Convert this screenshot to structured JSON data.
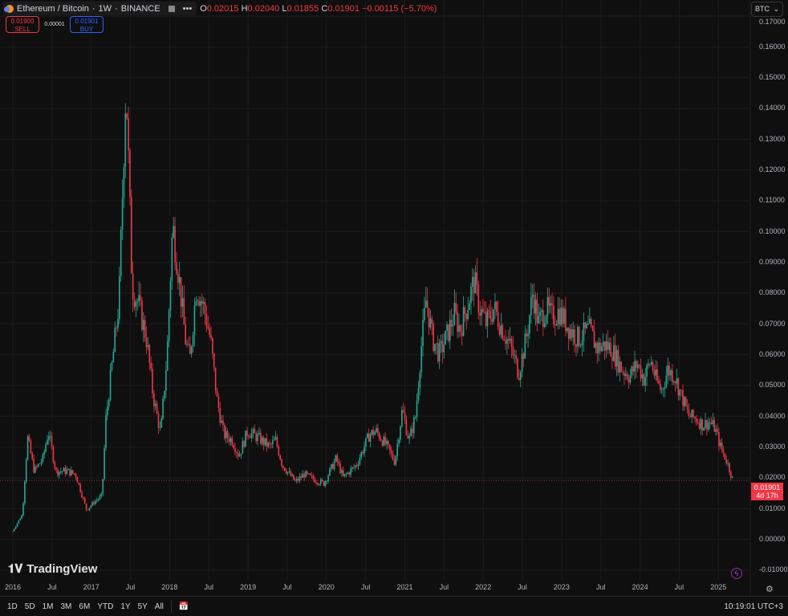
{
  "header": {
    "symbol": "Ethereum / Bitcoin",
    "interval": "1W",
    "exchange": "BINANCE",
    "more": "•••",
    "ohlc": {
      "o_label": "O",
      "o": "0.02015",
      "h_label": "H",
      "h": "0.02040",
      "l_label": "L",
      "l": "0.01855",
      "c_label": "C",
      "c": "0.01901",
      "change": "−0.00115 (−5.70%)"
    }
  },
  "trade": {
    "sell_price": "0.01900",
    "sell_label": "SELL",
    "spread": "0.00001",
    "buy_price": "0.01901",
    "buy_label": "BUY"
  },
  "currency": "BTC",
  "price_axis": [
    "0.17000",
    "0.16000",
    "0.15000",
    "0.14000",
    "0.13000",
    "0.12000",
    "0.11000",
    "0.10000",
    "0.09000",
    "0.08000",
    "0.07000",
    "0.06000",
    "0.05000",
    "0.04000",
    "0.03000",
    "0.02000",
    "0.01000",
    "0.00000",
    "-0.01000"
  ],
  "last_price": {
    "value": "0.01901",
    "countdown": "4d 17h"
  },
  "time_axis": [
    "2016",
    "Jul",
    "2017",
    "Jul",
    "2018",
    "Jul",
    "2019",
    "Jul",
    "2020",
    "Jul",
    "2021",
    "Jul",
    "2022",
    "Jul",
    "2023",
    "Jul",
    "2024",
    "Jul",
    "2025"
  ],
  "ranges": [
    "1D",
    "5D",
    "1M",
    "3M",
    "6M",
    "YTD",
    "1Y",
    "5Y",
    "All"
  ],
  "clock": "10:19:01 UTC+3",
  "watermark": "TradingView",
  "colors": {
    "up": "#22ab94",
    "down": "#f23645",
    "background": "#0f0f0f"
  },
  "chart_data": {
    "type": "candlestick",
    "title": "Ethereum / Bitcoin · 1W · BINANCE",
    "ylim": [
      -0.012,
      0.17
    ],
    "grid": true,
    "approx_close": [
      [
        "2016-01-01",
        0.0025
      ],
      [
        "2016-02-15",
        0.008
      ],
      [
        "2016-03-10",
        0.033
      ],
      [
        "2016-04-10",
        0.022
      ],
      [
        "2016-05-20",
        0.026
      ],
      [
        "2016-06-15",
        0.035
      ],
      [
        "2016-07-20",
        0.022
      ],
      [
        "2016-09-10",
        0.022
      ],
      [
        "2016-10-20",
        0.021
      ],
      [
        "2016-12-10",
        0.0094
      ],
      [
        "2017-01-15",
        0.012
      ],
      [
        "2017-02-20",
        0.014
      ],
      [
        "2017-03-10",
        0.039
      ],
      [
        "2017-04-10",
        0.058
      ],
      [
        "2017-05-10",
        0.077
      ],
      [
        "2017-06-12",
        0.149
      ],
      [
        "2017-07-10",
        0.082
      ],
      [
        "2017-08-10",
        0.076
      ],
      [
        "2017-09-15",
        0.065
      ],
      [
        "2017-10-15",
        0.047
      ],
      [
        "2017-11-20",
        0.034
      ],
      [
        "2017-12-20",
        0.06
      ],
      [
        "2018-01-15",
        0.102
      ],
      [
        "2018-02-15",
        0.084
      ],
      [
        "2018-03-15",
        0.065
      ],
      [
        "2018-04-05",
        0.058
      ],
      [
        "2018-05-05",
        0.082
      ],
      [
        "2018-06-10",
        0.075
      ],
      [
        "2018-07-10",
        0.065
      ],
      [
        "2018-08-10",
        0.045
      ],
      [
        "2018-09-10",
        0.034
      ],
      [
        "2018-10-20",
        0.032
      ],
      [
        "2018-11-20",
        0.027
      ],
      [
        "2018-12-30",
        0.035
      ],
      [
        "2019-02-15",
        0.033
      ],
      [
        "2019-04-10",
        0.03
      ],
      [
        "2019-05-10",
        0.032
      ],
      [
        "2019-06-10",
        0.024
      ],
      [
        "2019-08-10",
        0.0185
      ],
      [
        "2019-09-20",
        0.021
      ],
      [
        "2019-11-15",
        0.019
      ],
      [
        "2019-12-20",
        0.018
      ],
      [
        "2020-02-15",
        0.026
      ],
      [
        "2020-03-20",
        0.02
      ],
      [
        "2020-05-20",
        0.024
      ],
      [
        "2020-07-20",
        0.034
      ],
      [
        "2020-08-20",
        0.035
      ],
      [
        "2020-10-10",
        0.03
      ],
      [
        "2020-11-15",
        0.025
      ],
      [
        "2020-12-20",
        0.042
      ],
      [
        "2021-01-20",
        0.032
      ],
      [
        "2021-02-20",
        0.04
      ],
      [
        "2021-03-15",
        0.06
      ],
      [
        "2021-04-10",
        0.078
      ],
      [
        "2021-05-10",
        0.065
      ],
      [
        "2021-06-10",
        0.06
      ],
      [
        "2021-07-10",
        0.065
      ],
      [
        "2021-08-20",
        0.073
      ],
      [
        "2021-09-15",
        0.068
      ],
      [
        "2021-10-15",
        0.075
      ],
      [
        "2021-11-20",
        0.084
      ],
      [
        "2021-12-15",
        0.075
      ],
      [
        "2022-01-15",
        0.07
      ],
      [
        "2022-02-20",
        0.075
      ],
      [
        "2022-03-20",
        0.07
      ],
      [
        "2022-05-10",
        0.062
      ],
      [
        "2022-06-15",
        0.054
      ],
      [
        "2022-07-20",
        0.065
      ],
      [
        "2022-08-20",
        0.08
      ],
      [
        "2022-09-15",
        0.07
      ],
      [
        "2022-10-20",
        0.075
      ],
      [
        "2022-11-20",
        0.072
      ],
      [
        "2022-12-20",
        0.074
      ],
      [
        "2023-02-10",
        0.068
      ],
      [
        "2023-03-20",
        0.065
      ],
      [
        "2023-05-10",
        0.068
      ],
      [
        "2023-06-15",
        0.062
      ],
      [
        "2023-07-20",
        0.063
      ],
      [
        "2023-08-20",
        0.062
      ],
      [
        "2023-10-10",
        0.055
      ],
      [
        "2023-11-15",
        0.053
      ],
      [
        "2023-12-20",
        0.057
      ],
      [
        "2024-01-20",
        0.052
      ],
      [
        "2024-02-20",
        0.058
      ],
      [
        "2024-03-15",
        0.052
      ],
      [
        "2024-04-10",
        0.048
      ],
      [
        "2024-05-10",
        0.055
      ],
      [
        "2024-06-10",
        0.053
      ],
      [
        "2024-07-20",
        0.045
      ],
      [
        "2024-08-15",
        0.04
      ],
      [
        "2024-09-20",
        0.039
      ],
      [
        "2024-10-20",
        0.037
      ],
      [
        "2024-11-20",
        0.038
      ],
      [
        "2024-12-15",
        0.036
      ],
      [
        "2025-01-10",
        0.03
      ],
      [
        "2025-02-10",
        0.025
      ],
      [
        "2025-03-10",
        0.019
      ]
    ]
  }
}
